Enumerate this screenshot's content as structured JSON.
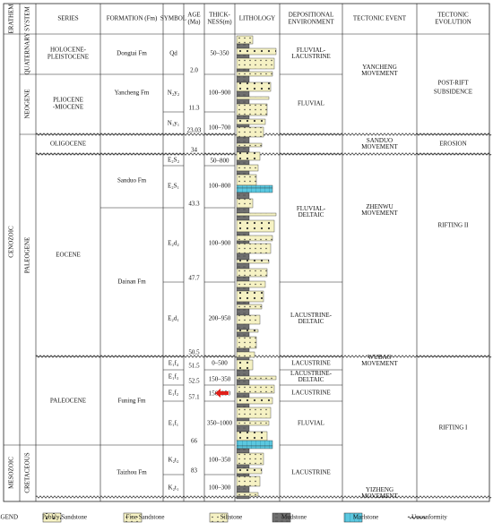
{
  "header": {
    "erathem": "ERATHEM",
    "system": "SYSTEM",
    "series": "SERIES",
    "formation": "FORMATION (Fm)",
    "symbol": "SYMBOL",
    "age": [
      "AGE",
      "(Ma)"
    ],
    "thickness": [
      "THICK-",
      "NESS(m)"
    ],
    "lithology": "LITHOLOGY",
    "environment": [
      "DEPOSITIONAL",
      "ENVIRONMENT"
    ],
    "event": "TECTONIC EVENT",
    "evolution": [
      "TECTONIC",
      "EVOLUTION"
    ]
  },
  "erathems": [
    "CENOZOIC",
    "MESOZOIC"
  ],
  "systems": [
    "QUATERNARY",
    "NEOGENE",
    "PALEOGENE",
    "CRETACEOUS"
  ],
  "series": [
    [
      "HOLOCENE-",
      "PLEISTOCENE"
    ],
    [
      "PLIOCENE",
      "-MIOCENE"
    ],
    "OLIGOCENE",
    "EOCENE",
    "PALEOCENE"
  ],
  "formations": [
    "Dongtai Fm",
    "Yancheng Fm",
    "Sanduo Fm",
    "Dainan Fm",
    "Funing Fm",
    "Taizhou Fm"
  ],
  "symbols": [
    "Qd",
    "N₂y₂",
    "N₁y₁",
    "E₂S₂",
    "E₂S₁",
    "E₂d₂",
    "E₂d₁",
    "E₁f₄",
    "E₁f₃",
    "E₁f₂",
    "E₁f₁",
    "K₂t₂",
    "K₂t₁"
  ],
  "ages": [
    "2.0",
    "11.3",
    "23.03",
    "34",
    "43.3",
    "47.7",
    "50.5",
    "51.5",
    "52.5",
    "57.1",
    "66",
    "83"
  ],
  "thicknesses": [
    "50–350",
    "100–900",
    "100–700",
    "50–800",
    "100–800",
    "100–900",
    "200–950",
    "0–500",
    "150–350",
    "150–350",
    "350–1000",
    "100–350",
    "100–300"
  ],
  "environments": [
    [
      "FLUVIAL-",
      "LACUSTRINE"
    ],
    "FLUVIAL",
    [
      "FLUVIAL-",
      "DELTAIC"
    ],
    [
      "LACUSTRINE-",
      "DELTAIC"
    ],
    "LACUSTRINE",
    [
      "LACUSTRINE-",
      "DELTAIC"
    ],
    "LACUSTRINE",
    "FLUVIAL",
    "LACUSTRINE"
  ],
  "events": [
    [
      "YANCHENG",
      "MOVEMENT"
    ],
    [
      "SANDUO",
      "MOVEMENT"
    ],
    [
      "ZHENWU",
      "MOVEMENT"
    ],
    [
      "WUBAO",
      "MOVEMENT"
    ],
    [
      "YIZHENG",
      "MOVEMENT"
    ]
  ],
  "evolutions": [
    [
      "POST-RIFT",
      "SUBSIDENCE"
    ],
    "EROSION",
    "RIFTING II",
    "RIFTING I"
  ],
  "legend": {
    "title": "LEGEND",
    "items": [
      "Pebbly Sandstone",
      "Fine Sandstone",
      "Siltstone",
      "Mudstone",
      "Marlstone",
      "Unconformity"
    ]
  }
}
